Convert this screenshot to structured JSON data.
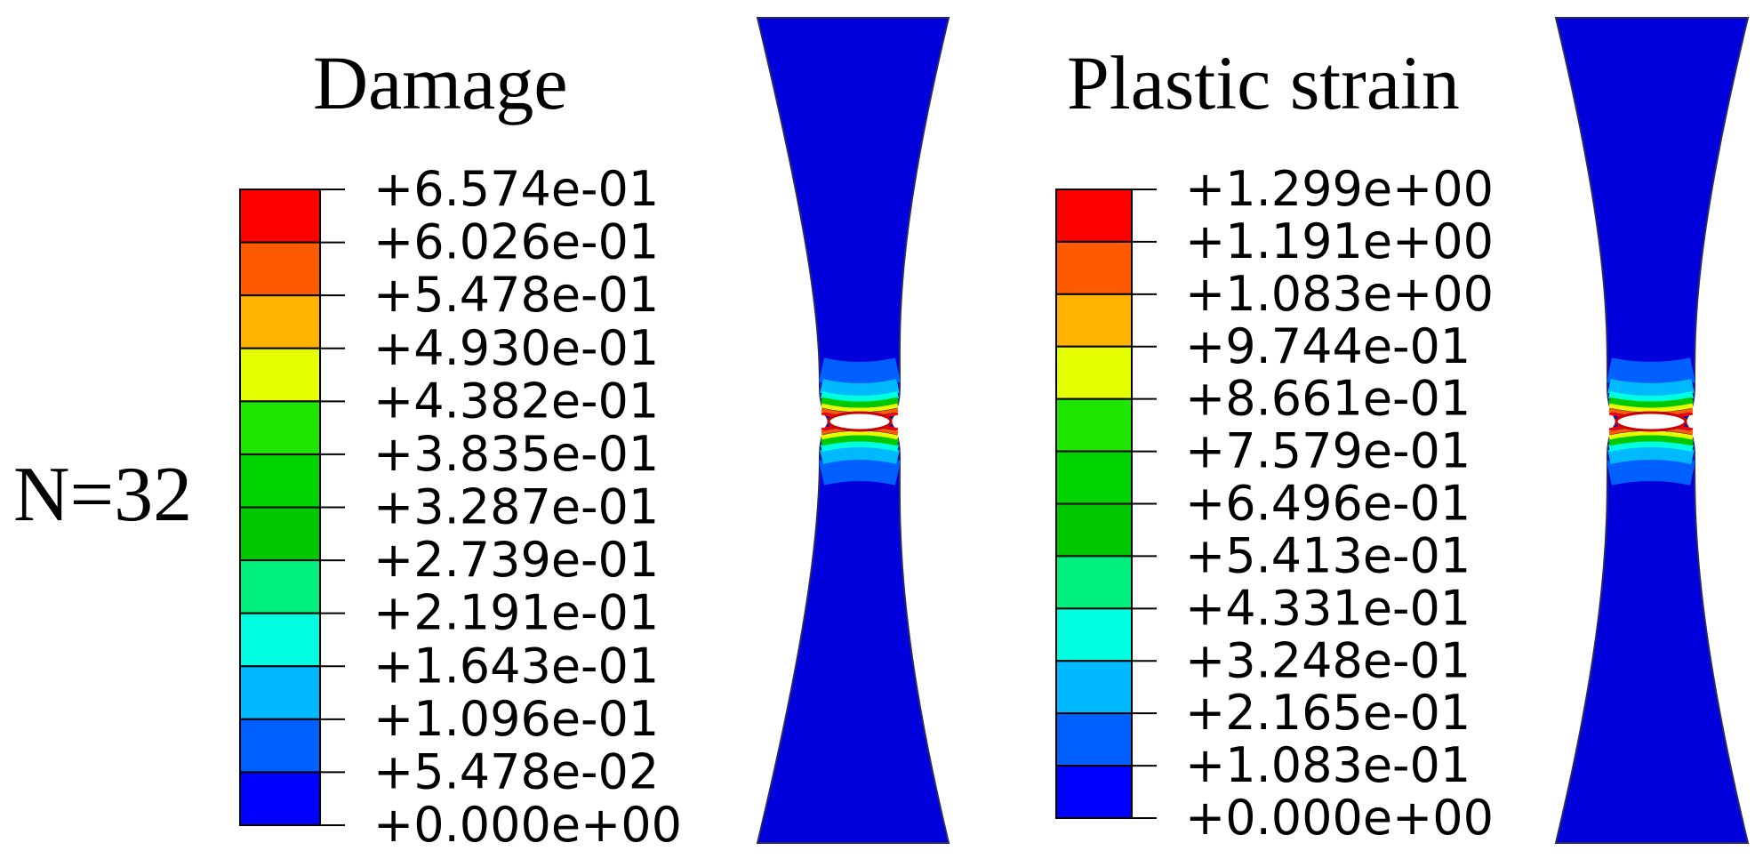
{
  "figure": {
    "case_label": "N=32"
  },
  "panels": [
    {
      "title": "Damage",
      "legend_values": [
        "+6.574e-01",
        "+6.026e-01",
        "+5.478e-01",
        "+4.930e-01",
        "+4.382e-01",
        "+3.835e-01",
        "+3.287e-01",
        "+2.739e-01",
        "+2.191e-01",
        "+1.643e-01",
        "+1.096e-01",
        "+5.478e-02",
        "+0.000e+00"
      ]
    },
    {
      "title": "Plastic strain",
      "legend_values": [
        "+1.299e+00",
        "+1.191e+00",
        "+1.083e+00",
        "+9.744e-01",
        "+8.661e-01",
        "+7.579e-01",
        "+6.496e-01",
        "+5.413e-01",
        "+4.331e-01",
        "+3.248e-01",
        "+2.165e-01",
        "+1.083e-01",
        "+0.000e+00"
      ]
    }
  ],
  "colormap": [
    "#ff0000",
    "#ff5a00",
    "#ffb300",
    "#e6ff00",
    "#1fe600",
    "#00d400",
    "#00c800",
    "#00f07f",
    "#00ffe1",
    "#00b9ff",
    "#0060ff",
    "#0000ff"
  ],
  "specimen_base_color": "#0000dd"
}
